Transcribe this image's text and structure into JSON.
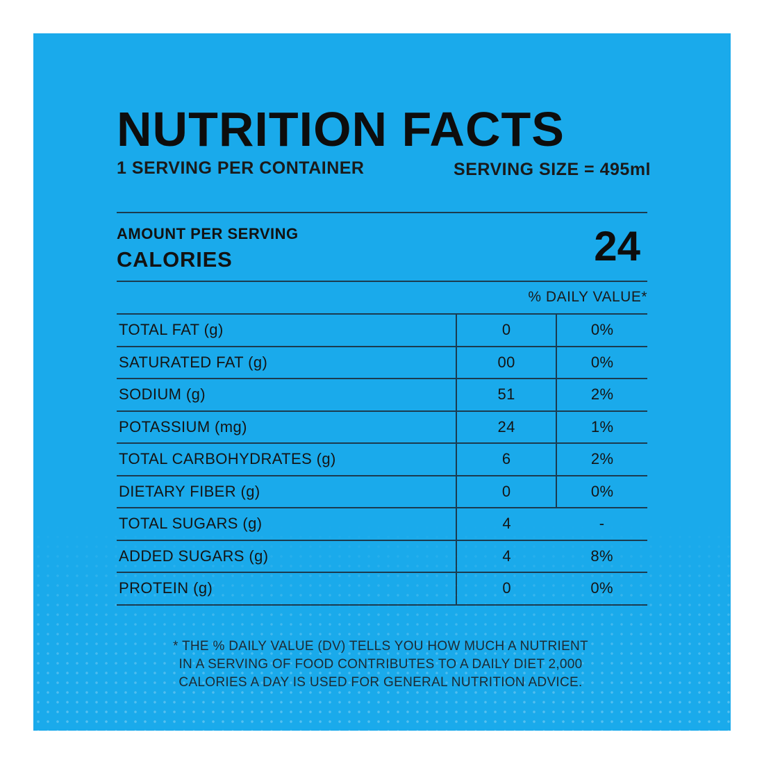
{
  "panel": {
    "background_color": "#1aaaeb"
  },
  "header": {
    "title": "NUTRITION FACTS",
    "servings_per_container": "1 SERVING PER CONTAINER",
    "serving_size": "SERVING SIZE = 495ml"
  },
  "calories": {
    "amount_label": "AMOUNT PER SERVING",
    "label": "CALORIES",
    "value": "24"
  },
  "table": {
    "dv_header": "% DAILY VALUE*",
    "rows": [
      {
        "name": "TOTAL FAT (g)",
        "amount": "0",
        "dv": "0%"
      },
      {
        "name": "SATURATED FAT (g)",
        "amount": "00",
        "dv": "0%"
      },
      {
        "name": "SODIUM (g)",
        "amount": "51",
        "dv": "2%"
      },
      {
        "name": "POTASSIUM (mg)",
        "amount": "24",
        "dv": "1%"
      },
      {
        "name": "TOTAL CARBOHYDRATES (g)",
        "amount": "6",
        "dv": "2%"
      },
      {
        "name": "DIETARY FIBER (g)",
        "amount": "0",
        "dv": "0%"
      },
      {
        "name": "TOTAL SUGARS (g)",
        "amount": "4",
        "dv": "-"
      },
      {
        "name": "ADDED SUGARS (g)",
        "amount": "4",
        "dv": "8%"
      },
      {
        "name": "PROTEIN (g)",
        "amount": "0",
        "dv": "0%"
      }
    ]
  },
  "footnote": {
    "lines": [
      "* THE % DAILY VALUE (DV) TELLS YOU HOW MUCH A NUTRIENT",
      "IN A SERVING OF FOOD CONTRIBUTES TO A DAILY DIET 2,000",
      "CALORIES A DAY IS USED FOR GENERAL NUTRITION ADVICE."
    ]
  }
}
